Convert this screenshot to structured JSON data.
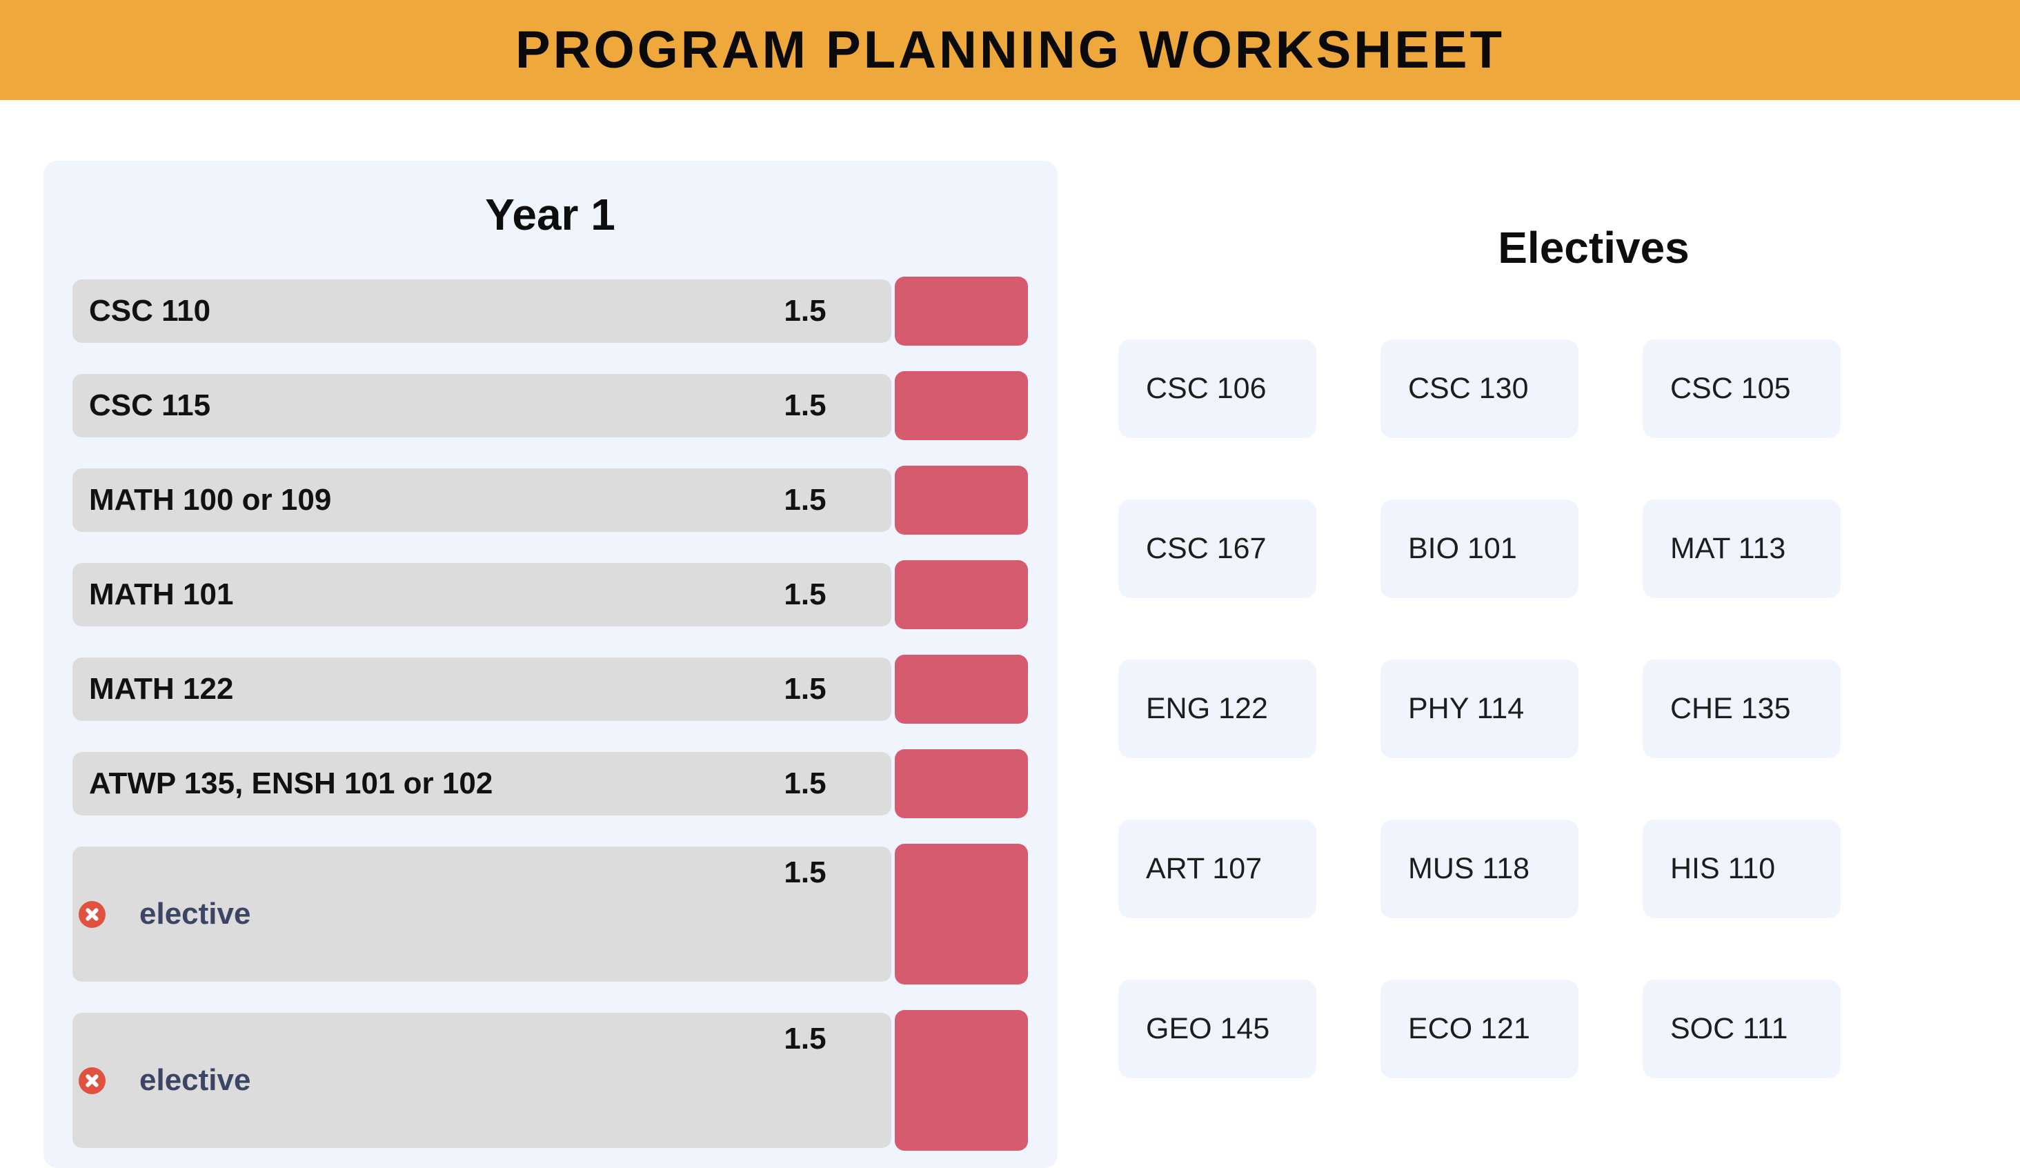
{
  "header": {
    "title": "PROGRAM PLANNING WORKSHEET"
  },
  "year_panel": {
    "title": "Year 1",
    "rows": [
      {
        "type": "course",
        "name": "CSC 110",
        "credits": "1.5"
      },
      {
        "type": "course",
        "name": "CSC 115",
        "credits": "1.5"
      },
      {
        "type": "course",
        "name": "MATH 100 or 109",
        "credits": "1.5"
      },
      {
        "type": "course",
        "name": "MATH 101",
        "credits": "1.5"
      },
      {
        "type": "course",
        "name": "MATH 122",
        "credits": "1.5"
      },
      {
        "type": "course",
        "name": "ATWP 135, ENSH 101 or 102",
        "credits": "1.5"
      },
      {
        "type": "elective",
        "name": "elective",
        "credits": "1.5"
      },
      {
        "type": "elective",
        "name": "elective",
        "credits": "1.5"
      }
    ]
  },
  "electives": {
    "title": "Electives",
    "courses": [
      "CSC 106",
      "CSC 130",
      "CSC 105",
      "CSC 167",
      "BIO 101",
      "MAT 113",
      "ENG 122",
      "PHY 114",
      "CHE 135",
      "ART 107",
      "MUS 118",
      "HIS 110",
      "GEO 145",
      "ECO 121",
      "SOC 111"
    ]
  },
  "icons": {
    "remove_elective": "x-circle-icon"
  },
  "colors": {
    "header_bg": "#eea83c",
    "panel_bg": "#f0f4fc",
    "bar_bg": "#dcdcdc",
    "action_button": "#d75b6e",
    "remove_icon": "#e0523f",
    "elective_label": "#3d4565",
    "card_bg": "#f0f4fc"
  }
}
